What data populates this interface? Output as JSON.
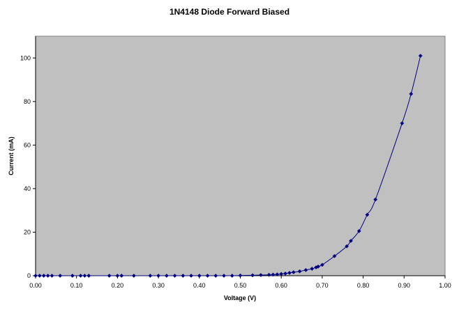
{
  "chart_data": {
    "type": "scatter",
    "title": "1N4148 Diode Forward Biased",
    "xlabel": "Voltage (V)",
    "ylabel": "Current (mA)",
    "xlim": [
      0,
      1.0
    ],
    "ylim": [
      0,
      110
    ],
    "x_ticks": [
      "0.00",
      "0.10",
      "0.20",
      "0.30",
      "0.40",
      "0.50",
      "0.60",
      "0.70",
      "0.80",
      "0.90",
      "1.00"
    ],
    "y_ticks": [
      "0",
      "20",
      "40",
      "60",
      "80",
      "100"
    ],
    "grid": false,
    "legend": "none",
    "series": [
      {
        "color": "#000080",
        "marker": "diamond",
        "line": "smooth",
        "x": [
          0.0,
          0.01,
          0.02,
          0.03,
          0.04,
          0.06,
          0.09,
          0.11,
          0.12,
          0.13,
          0.18,
          0.2,
          0.21,
          0.24,
          0.28,
          0.3,
          0.32,
          0.34,
          0.36,
          0.38,
          0.4,
          0.42,
          0.44,
          0.46,
          0.48,
          0.5,
          0.53,
          0.55,
          0.57,
          0.58,
          0.59,
          0.6,
          0.61,
          0.62,
          0.63,
          0.645,
          0.66,
          0.675,
          0.685,
          0.69,
          0.7,
          0.73,
          0.76,
          0.77,
          0.79,
          0.81,
          0.83,
          0.895,
          0.917,
          0.94
        ],
        "y": [
          0,
          0,
          0,
          0,
          0,
          0,
          0,
          0,
          0,
          0,
          0,
          0,
          0,
          0,
          0,
          0,
          0,
          0,
          0,
          0,
          0,
          0,
          0,
          0,
          0,
          0.1,
          0.2,
          0.3,
          0.4,
          0.5,
          0.6,
          0.8,
          1.0,
          1.3,
          1.6,
          2.0,
          2.6,
          3.2,
          3.8,
          4.2,
          5.0,
          9.0,
          13.5,
          16.0,
          20.5,
          28.0,
          35.0,
          70.0,
          83.5,
          101.0
        ]
      }
    ]
  }
}
